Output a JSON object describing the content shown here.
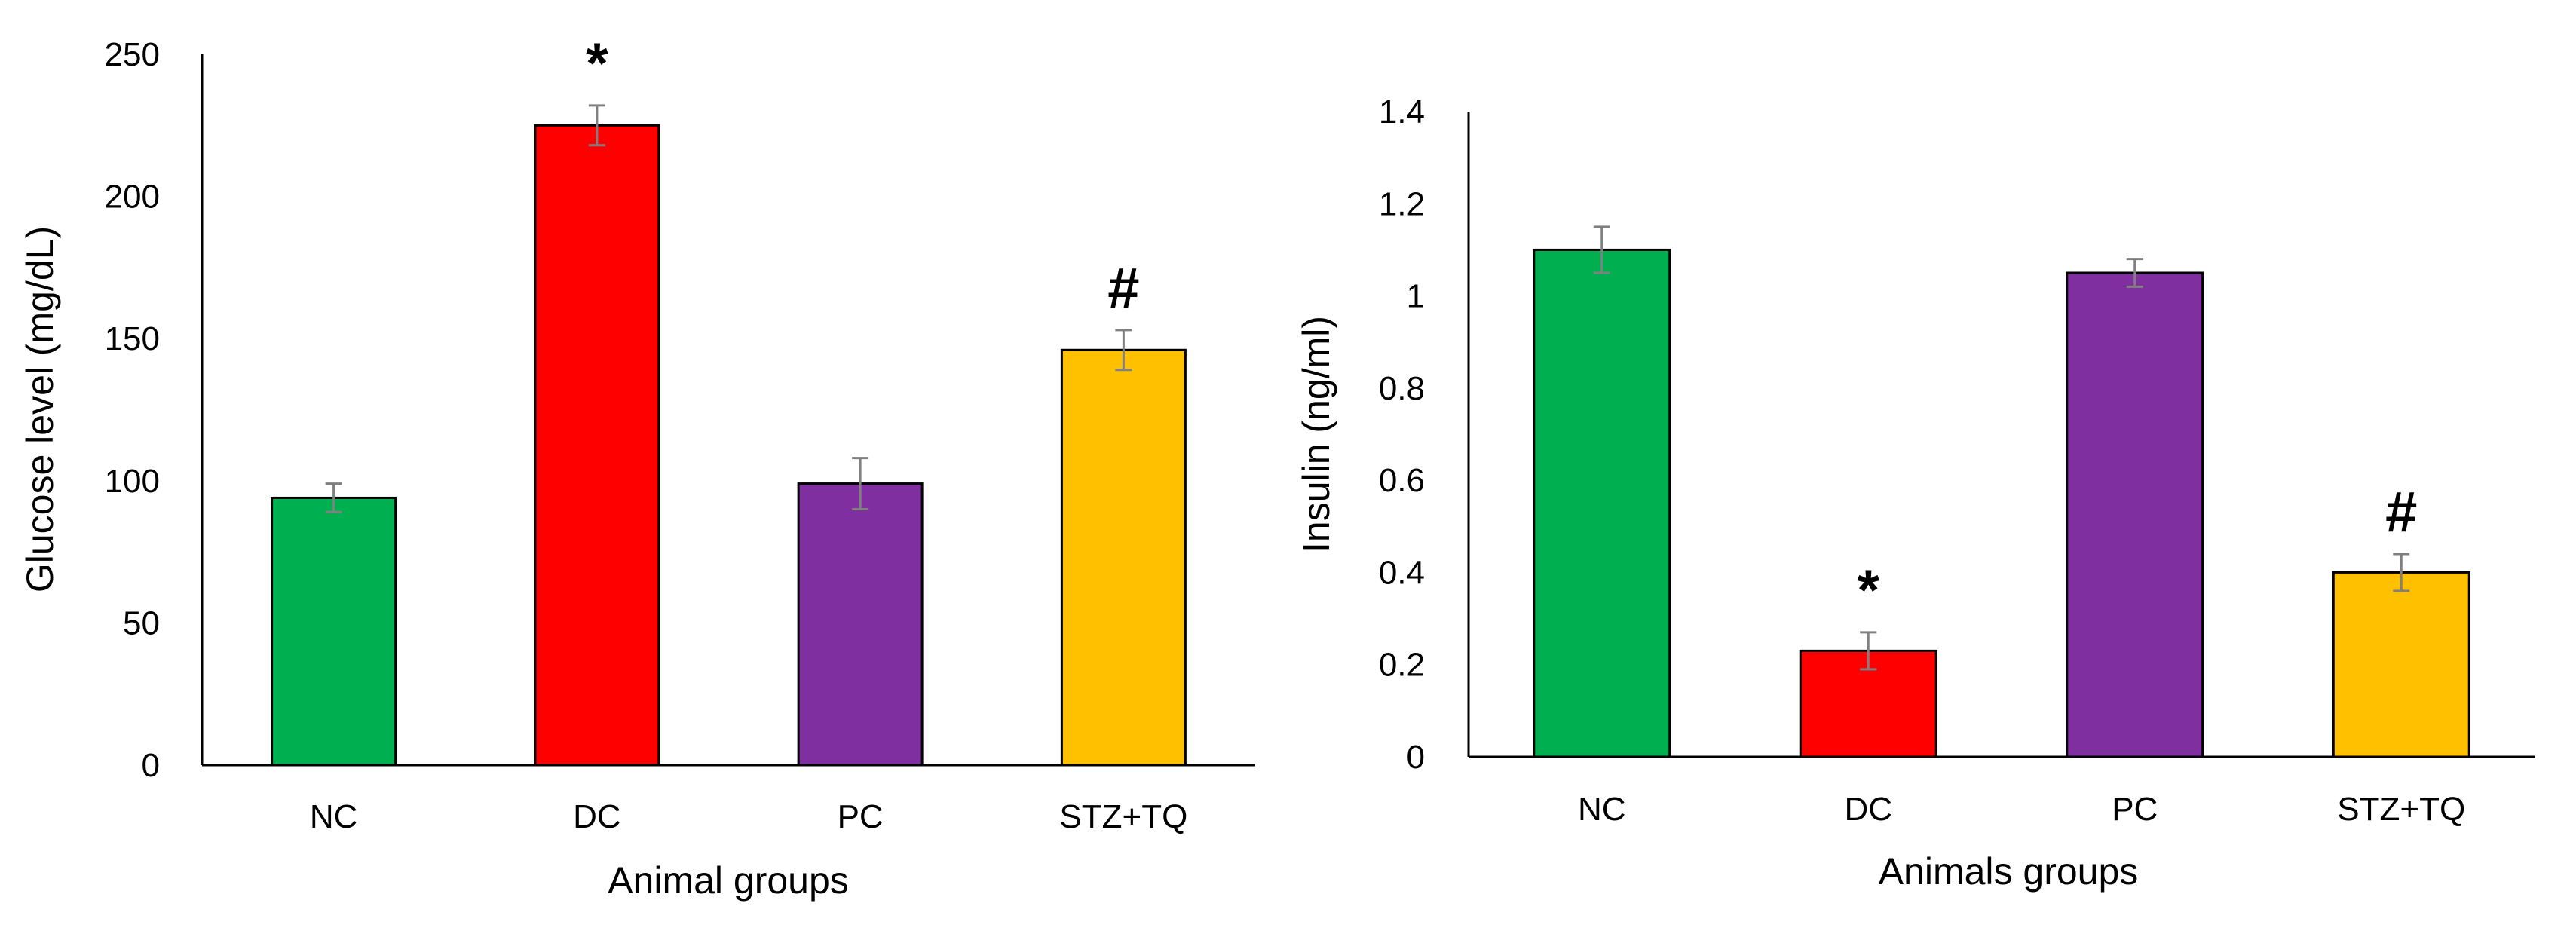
{
  "chart_data": [
    {
      "type": "bar",
      "title": "",
      "xlabel": "Animal groups",
      "ylabel": "Glucose level (mg/dL)",
      "ylim": [
        0,
        250
      ],
      "yticks": [
        0,
        50,
        100,
        150,
        200,
        250
      ],
      "grid": false,
      "legend": "none",
      "categories": [
        "NC",
        "DC",
        "PC",
        "STZ+TQ"
      ],
      "values": [
        94,
        225,
        99,
        146
      ],
      "errors": [
        5,
        7,
        9,
        7
      ],
      "bar_colors": [
        "#00B050",
        "#FF0000",
        "#7F2F9F",
        "#FFC000"
      ],
      "error_color": "#808080",
      "annotations": [
        "",
        "*",
        "",
        "#"
      ]
    },
    {
      "type": "bar",
      "title": "",
      "xlabel": "Animals groups",
      "ylabel": "Insulin (ng/ml)",
      "ylim": [
        0,
        1.4
      ],
      "yticks": [
        "0",
        "0.2",
        "0.4",
        "0.6",
        "0.8",
        "1",
        "1.2",
        "1.4"
      ],
      "grid": false,
      "legend": "none",
      "categories": [
        "NC",
        "DC",
        "PC",
        "STZ+TQ"
      ],
      "values": [
        1.1,
        0.23,
        1.05,
        0.4
      ],
      "errors": [
        0.05,
        0.04,
        0.03,
        0.04
      ],
      "bar_colors": [
        "#00B050",
        "#FF0000",
        "#7F2F9F",
        "#FFC000"
      ],
      "error_color": "#808080",
      "annotations": [
        "",
        "*",
        "",
        "#"
      ]
    }
  ]
}
